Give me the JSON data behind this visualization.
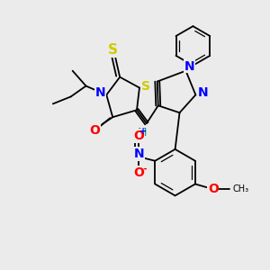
{
  "bg_color": "#ebebeb",
  "atom_colors": {
    "S": "#cccc00",
    "N": "#0000ff",
    "O": "#ff0000",
    "H": "#00aa88",
    "C": "#000000"
  },
  "bond_color": "#000000",
  "bond_lw": 1.3,
  "font_size_atom": 9,
  "font_size_label": 8
}
